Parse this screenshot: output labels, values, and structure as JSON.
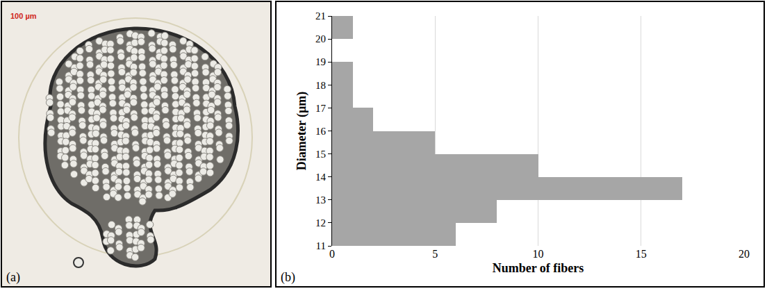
{
  "panel_a": {
    "label": "(a)",
    "scale_label": "100 µm"
  },
  "chart_data": {
    "type": "histogram",
    "orientation": "horizontal",
    "annotations": [
      "(b)"
    ],
    "x_label": "Number of fibers",
    "y_label": "Diameter (µm)",
    "bins": [
      11,
      12,
      13,
      14,
      15,
      16,
      17,
      18,
      19,
      20,
      21
    ],
    "values": [
      6,
      8,
      17,
      10,
      5,
      2,
      1,
      1,
      0,
      1
    ],
    "color": "#a6a6a6",
    "xlim": [
      0,
      20
    ],
    "xticks": [
      0,
      5,
      10,
      15,
      20
    ],
    "ylim": [
      11,
      21
    ],
    "yticks": [
      11,
      12,
      13,
      14,
      15,
      16,
      17,
      18,
      19,
      20,
      21
    ],
    "grid": true
  }
}
